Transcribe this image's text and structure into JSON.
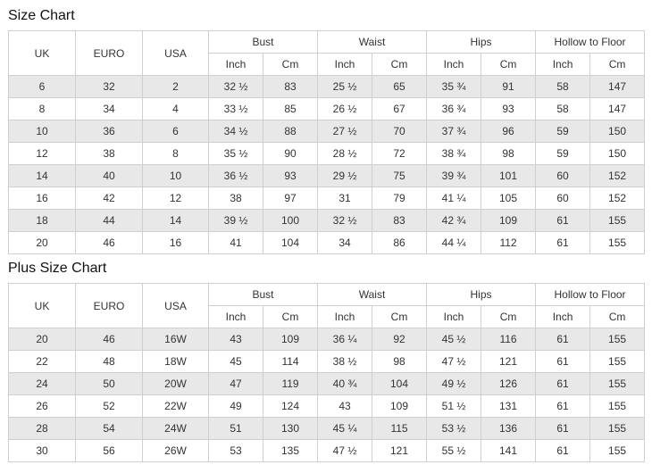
{
  "sections": [
    {
      "title": "Size Chart",
      "columns": [
        "UK",
        "EURO",
        "USA"
      ],
      "groups": [
        {
          "label": "Bust",
          "units": [
            "Inch",
            "Cm"
          ]
        },
        {
          "label": "Waist",
          "units": [
            "Inch",
            "Cm"
          ]
        },
        {
          "label": "Hips",
          "units": [
            "Inch",
            "Cm"
          ]
        },
        {
          "label": "Hollow to Floor",
          "units": [
            "Inch",
            "Cm"
          ]
        }
      ],
      "rows": [
        [
          "6",
          "32",
          "2",
          "32 ½",
          "83",
          "25 ½",
          "65",
          "35 ¾",
          "91",
          "58",
          "147"
        ],
        [
          "8",
          "34",
          "4",
          "33 ½",
          "85",
          "26 ½",
          "67",
          "36 ¾",
          "93",
          "58",
          "147"
        ],
        [
          "10",
          "36",
          "6",
          "34 ½",
          "88",
          "27 ½",
          "70",
          "37 ¾",
          "96",
          "59",
          "150"
        ],
        [
          "12",
          "38",
          "8",
          "35 ½",
          "90",
          "28 ½",
          "72",
          "38 ¾",
          "98",
          "59",
          "150"
        ],
        [
          "14",
          "40",
          "10",
          "36 ½",
          "93",
          "29 ½",
          "75",
          "39 ¾",
          "101",
          "60",
          "152"
        ],
        [
          "16",
          "42",
          "12",
          "38",
          "97",
          "31",
          "79",
          "41 ¼",
          "105",
          "60",
          "152"
        ],
        [
          "18",
          "44",
          "14",
          "39 ½",
          "100",
          "32 ½",
          "83",
          "42 ¾",
          "109",
          "61",
          "155"
        ],
        [
          "20",
          "46",
          "16",
          "41",
          "104",
          "34",
          "86",
          "44 ¼",
          "112",
          "61",
          "155"
        ]
      ]
    },
    {
      "title": "Plus Size Chart",
      "columns": [
        "UK",
        "EURO",
        "USA"
      ],
      "groups": [
        {
          "label": "Bust",
          "units": [
            "Inch",
            "Cm"
          ]
        },
        {
          "label": "Waist",
          "units": [
            "Inch",
            "Cm"
          ]
        },
        {
          "label": "Hips",
          "units": [
            "Inch",
            "Cm"
          ]
        },
        {
          "label": "Hollow to Floor",
          "units": [
            "Inch",
            "Cm"
          ]
        }
      ],
      "rows": [
        [
          "20",
          "46",
          "16W",
          "43",
          "109",
          "36 ¼",
          "92",
          "45 ½",
          "116",
          "61",
          "155"
        ],
        [
          "22",
          "48",
          "18W",
          "45",
          "114",
          "38 ½",
          "98",
          "47 ½",
          "121",
          "61",
          "155"
        ],
        [
          "24",
          "50",
          "20W",
          "47",
          "119",
          "40 ¾",
          "104",
          "49 ½",
          "126",
          "61",
          "155"
        ],
        [
          "26",
          "52",
          "22W",
          "49",
          "124",
          "43",
          "109",
          "51 ½",
          "131",
          "61",
          "155"
        ],
        [
          "28",
          "54",
          "24W",
          "51",
          "130",
          "45 ¼",
          "115",
          "53 ½",
          "136",
          "61",
          "155"
        ],
        [
          "30",
          "56",
          "26W",
          "53",
          "135",
          "47 ½",
          "121",
          "55 ½",
          "141",
          "61",
          "155"
        ]
      ]
    }
  ]
}
